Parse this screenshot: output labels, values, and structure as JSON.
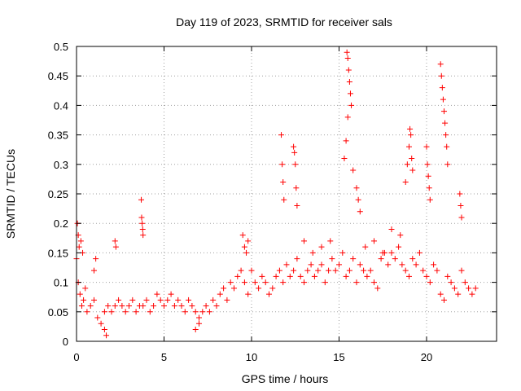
{
  "chart_data": {
    "type": "scatter",
    "title": "Day 119 of 2023, SRMTID for receiver sals",
    "xlabel": "GPS time / hours",
    "ylabel": "SRMTID / TECUs",
    "xlim": [
      0,
      24
    ],
    "ylim": [
      0,
      0.5
    ],
    "xticks": [
      0,
      5,
      10,
      15,
      20
    ],
    "yticks": [
      0,
      0.05,
      0.1,
      0.15,
      0.2,
      0.25,
      0.3,
      0.35,
      0.4,
      0.45,
      0.5
    ],
    "xtick_labels": [
      "0",
      "5",
      "10",
      "15",
      "20"
    ],
    "ytick_labels": [
      "0",
      "0.05",
      "0.1",
      "0.15",
      "0.2",
      "0.25",
      "0.3",
      "0.35",
      "0.4",
      "0.45",
      "0.5"
    ],
    "grid": true,
    "marker": "+",
    "marker_color": "#ff0000",
    "series": [
      {
        "name": "SRMTID",
        "x": [
          0.0,
          0.1,
          0.2,
          0.3,
          0.4,
          0.5,
          0.6,
          0.8,
          1.0,
          1.2,
          1.4,
          1.6,
          1.8,
          2.0,
          2.2,
          2.4,
          2.6,
          2.8,
          3.0,
          3.2,
          3.4,
          3.6,
          3.8,
          4.0,
          4.2,
          4.4,
          4.6,
          4.8,
          5.0,
          5.2,
          5.4,
          5.6,
          5.8,
          6.0,
          6.2,
          6.4,
          6.6,
          6.8,
          7.0,
          7.2,
          7.4,
          7.6,
          7.8,
          8.0,
          8.2,
          8.4,
          8.6,
          8.8,
          9.0,
          9.2,
          9.4,
          9.6,
          9.8,
          10.0,
          10.2,
          10.4,
          10.6,
          10.8,
          11.0,
          11.2,
          11.4,
          11.6,
          11.8,
          12.0,
          12.2,
          12.4,
          12.6,
          12.8,
          13.0,
          13.2,
          13.4,
          13.6,
          13.8,
          14.0,
          14.2,
          14.4,
          14.6,
          14.8,
          15.0,
          15.2,
          15.4,
          15.6,
          15.8,
          16.0,
          16.2,
          16.4,
          16.6,
          16.8,
          17.0,
          17.2,
          17.4,
          17.6,
          17.8,
          18.0,
          18.2,
          18.4,
          18.6,
          18.8,
          19.0,
          19.2,
          19.4,
          19.6,
          19.8,
          20.0,
          20.2,
          20.4,
          20.6,
          20.8,
          21.0,
          21.2,
          21.4,
          21.6,
          21.8,
          22.0,
          22.2,
          22.4,
          22.6,
          22.8,
          0.05,
          0.1,
          0.15,
          0.25,
          0.35,
          1.0,
          1.1,
          2.2,
          2.25,
          3.7,
          3.72,
          3.75,
          3.78,
          3.8,
          9.5,
          9.6,
          9.7,
          9.8,
          11.7,
          11.75,
          11.8,
          11.85,
          12.4,
          12.45,
          12.5,
          12.55,
          12.6,
          15.45,
          15.5,
          15.55,
          15.6,
          15.65,
          15.7,
          15.5,
          15.4,
          15.3,
          15.8,
          16.0,
          16.1,
          16.2,
          18.8,
          18.9,
          19.0,
          19.05,
          19.1,
          19.15,
          19.2,
          20.0,
          20.05,
          20.1,
          20.15,
          20.2,
          20.8,
          20.85,
          20.9,
          20.95,
          21.0,
          21.05,
          21.1,
          21.15,
          21.2,
          21.9,
          21.95,
          22.0,
          16.5,
          17.0,
          17.5,
          18.0,
          18.5,
          14.0,
          14.5,
          13.5,
          13.0,
          7.0,
          6.8,
          1.6,
          1.7
        ],
        "y": [
          0.14,
          0.1,
          0.08,
          0.06,
          0.07,
          0.09,
          0.05,
          0.06,
          0.07,
          0.04,
          0.03,
          0.05,
          0.06,
          0.05,
          0.06,
          0.07,
          0.06,
          0.05,
          0.06,
          0.07,
          0.05,
          0.06,
          0.06,
          0.07,
          0.05,
          0.06,
          0.08,
          0.07,
          0.06,
          0.07,
          0.08,
          0.06,
          0.07,
          0.06,
          0.05,
          0.07,
          0.06,
          0.05,
          0.04,
          0.05,
          0.06,
          0.05,
          0.07,
          0.06,
          0.08,
          0.09,
          0.07,
          0.1,
          0.09,
          0.11,
          0.12,
          0.1,
          0.08,
          0.12,
          0.1,
          0.09,
          0.11,
          0.1,
          0.08,
          0.09,
          0.11,
          0.12,
          0.1,
          0.13,
          0.11,
          0.12,
          0.14,
          0.11,
          0.1,
          0.12,
          0.13,
          0.11,
          0.12,
          0.13,
          0.1,
          0.12,
          0.14,
          0.12,
          0.13,
          0.15,
          0.11,
          0.12,
          0.14,
          0.1,
          0.13,
          0.12,
          0.11,
          0.12,
          0.1,
          0.09,
          0.14,
          0.15,
          0.13,
          0.15,
          0.14,
          0.16,
          0.13,
          0.12,
          0.11,
          0.14,
          0.13,
          0.15,
          0.12,
          0.11,
          0.1,
          0.13,
          0.12,
          0.08,
          0.07,
          0.11,
          0.1,
          0.09,
          0.08,
          0.12,
          0.1,
          0.09,
          0.08,
          0.09,
          0.2,
          0.18,
          0.16,
          0.17,
          0.15,
          0.12,
          0.14,
          0.17,
          0.16,
          0.24,
          0.21,
          0.2,
          0.19,
          0.18,
          0.18,
          0.16,
          0.15,
          0.17,
          0.35,
          0.3,
          0.27,
          0.24,
          0.33,
          0.32,
          0.3,
          0.26,
          0.23,
          0.49,
          0.48,
          0.46,
          0.44,
          0.42,
          0.4,
          0.38,
          0.34,
          0.31,
          0.29,
          0.26,
          0.24,
          0.22,
          0.27,
          0.3,
          0.33,
          0.36,
          0.35,
          0.31,
          0.29,
          0.33,
          0.3,
          0.28,
          0.26,
          0.24,
          0.47,
          0.45,
          0.43,
          0.41,
          0.39,
          0.37,
          0.35,
          0.33,
          0.3,
          0.25,
          0.23,
          0.21,
          0.16,
          0.17,
          0.15,
          0.19,
          0.18,
          0.16,
          0.17,
          0.15,
          0.17,
          0.03,
          0.02,
          0.02,
          0.01
        ]
      }
    ]
  }
}
